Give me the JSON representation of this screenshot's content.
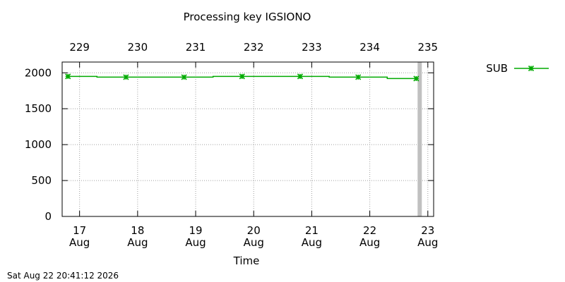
{
  "chart_data": {
    "type": "line",
    "title": "Processing key IGSIONO",
    "xlabel": "Time",
    "ylabel": "",
    "ylim": [
      0,
      2150
    ],
    "xlim": [
      16.7,
      23.1
    ],
    "yticks": [
      0,
      500,
      1000,
      1500,
      2000
    ],
    "x_ticks_bottom": [
      {
        "value": 17,
        "day": "17",
        "month": "Aug"
      },
      {
        "value": 18,
        "day": "18",
        "month": "Aug"
      },
      {
        "value": 19,
        "day": "19",
        "month": "Aug"
      },
      {
        "value": 20,
        "day": "20",
        "month": "Aug"
      },
      {
        "value": 21,
        "day": "21",
        "month": "Aug"
      },
      {
        "value": 22,
        "day": "22",
        "month": "Aug"
      },
      {
        "value": 23,
        "day": "23",
        "month": "Aug"
      }
    ],
    "x_ticks_top": [
      {
        "value": 17,
        "label": "229"
      },
      {
        "value": 18,
        "label": "230"
      },
      {
        "value": 19,
        "label": "231"
      },
      {
        "value": 20,
        "label": "232"
      },
      {
        "value": 21,
        "label": "233"
      },
      {
        "value": 22,
        "label": "234"
      },
      {
        "value": 23,
        "label": "235"
      }
    ],
    "grid": true,
    "legend_position": "top-right",
    "series": [
      {
        "name": "SUB",
        "color": "#00aa00",
        "marker": "star",
        "line_shape": "step",
        "x": [
          16.8,
          17.8,
          18.8,
          19.8,
          20.8,
          21.8,
          22.8
        ],
        "values": [
          1950,
          1940,
          1940,
          1950,
          1950,
          1940,
          1920
        ]
      }
    ],
    "current_time_marker": {
      "x": 22.86,
      "color": "#c0c0c0"
    }
  },
  "footer": {
    "timestamp": "Sat Aug 22 20:41:12 2026"
  }
}
